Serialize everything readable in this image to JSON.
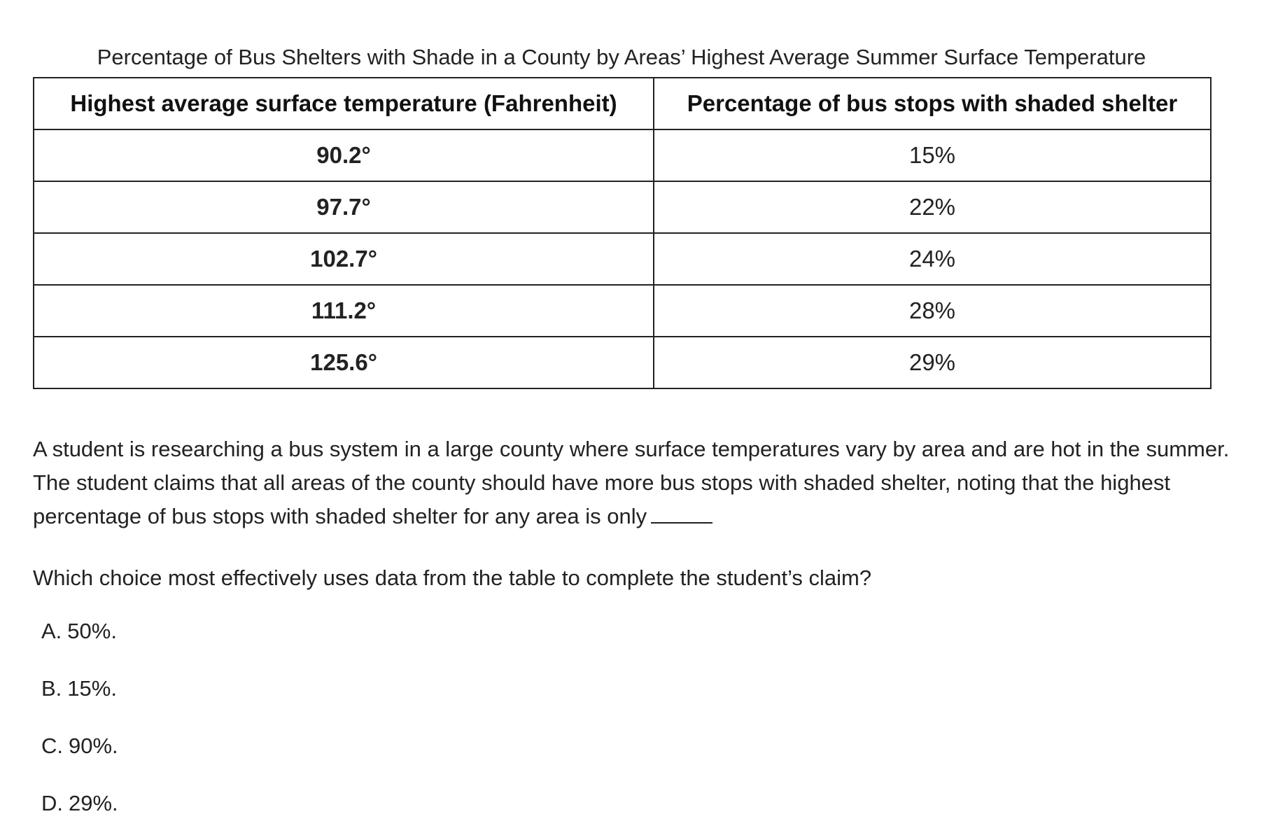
{
  "table": {
    "title": "Percentage of Bus Shelters with Shade in a County by Areas’ Highest Average Summer Surface Temperature",
    "headers": [
      "Highest average surface temperature (Fahrenheit)",
      "Percentage of bus stops with shaded shelter"
    ],
    "rows": [
      {
        "temp": "90.2°",
        "pct": "15%"
      },
      {
        "temp": "97.7°",
        "pct": "22%"
      },
      {
        "temp": "102.7°",
        "pct": "24%"
      },
      {
        "temp": "111.2°",
        "pct": "28%"
      },
      {
        "temp": "125.6°",
        "pct": "29%"
      }
    ]
  },
  "passage": {
    "line1": "A student is researching a bus system in a large county where surface temperatures vary by area and are hot in the summer.",
    "line2": "The student claims that all areas of the county should have more bus stops with shaded shelter, noting that the highest",
    "line3": "percentage of bus stops with shaded shelter for any area is only"
  },
  "question": "Which choice most effectively uses data from the table to complete the student’s claim?",
  "choices": [
    {
      "letter": "A.",
      "text": "50%."
    },
    {
      "letter": "B.",
      "text": "15%."
    },
    {
      "letter": "C.",
      "text": "90%."
    },
    {
      "letter": "D.",
      "text": "29%."
    }
  ]
}
